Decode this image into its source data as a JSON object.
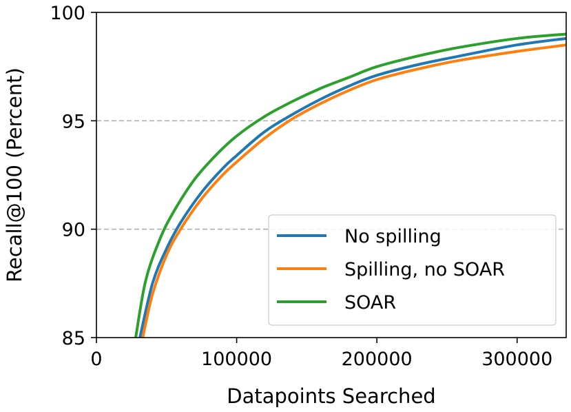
{
  "chart_data": {
    "type": "line",
    "xlabel": "Datapoints Searched",
    "ylabel": "Recall@100 (Percent)",
    "xlim": [
      0,
      335000
    ],
    "ylim": [
      85,
      100
    ],
    "xticks": [
      0,
      100000,
      200000,
      300000
    ],
    "xtick_labels": [
      "0",
      "100000",
      "200000",
      "300000"
    ],
    "yticks": [
      85,
      90,
      95,
      100
    ],
    "ytick_labels": [
      "85",
      "90",
      "95",
      "100"
    ],
    "grid": "horizontal dashed at 90 and 95",
    "legend_position": "lower-right",
    "series": [
      {
        "name": "No spilling",
        "color": "#1f77b4",
        "x": [
          31000,
          40000,
          50000,
          60000,
          75000,
          90000,
          100000,
          120000,
          140000,
          160000,
          180000,
          200000,
          230000,
          260000,
          300000,
          335000
        ],
        "y": [
          85.0,
          87.5,
          89.1,
          90.3,
          91.7,
          92.8,
          93.4,
          94.5,
          95.3,
          96.0,
          96.6,
          97.1,
          97.6,
          98.0,
          98.5,
          98.8
        ]
      },
      {
        "name": "Spilling, no SOAR",
        "color": "#ff7f0e",
        "x": [
          33000,
          40000,
          50000,
          60000,
          75000,
          90000,
          100000,
          120000,
          140000,
          160000,
          180000,
          200000,
          230000,
          260000,
          300000,
          335000
        ],
        "y": [
          85.0,
          87.0,
          88.8,
          90.0,
          91.4,
          92.5,
          93.1,
          94.2,
          95.1,
          95.8,
          96.4,
          96.9,
          97.4,
          97.8,
          98.2,
          98.5
        ]
      },
      {
        "name": "SOAR",
        "color": "#2ca02c",
        "x": [
          28000,
          35000,
          45000,
          55000,
          70000,
          85000,
          100000,
          120000,
          140000,
          160000,
          180000,
          200000,
          230000,
          260000,
          300000,
          335000
        ],
        "y": [
          85.0,
          87.6,
          89.5,
          90.8,
          92.3,
          93.4,
          94.3,
          95.2,
          95.9,
          96.5,
          97.0,
          97.5,
          98.0,
          98.4,
          98.8,
          99.0
        ]
      }
    ]
  }
}
